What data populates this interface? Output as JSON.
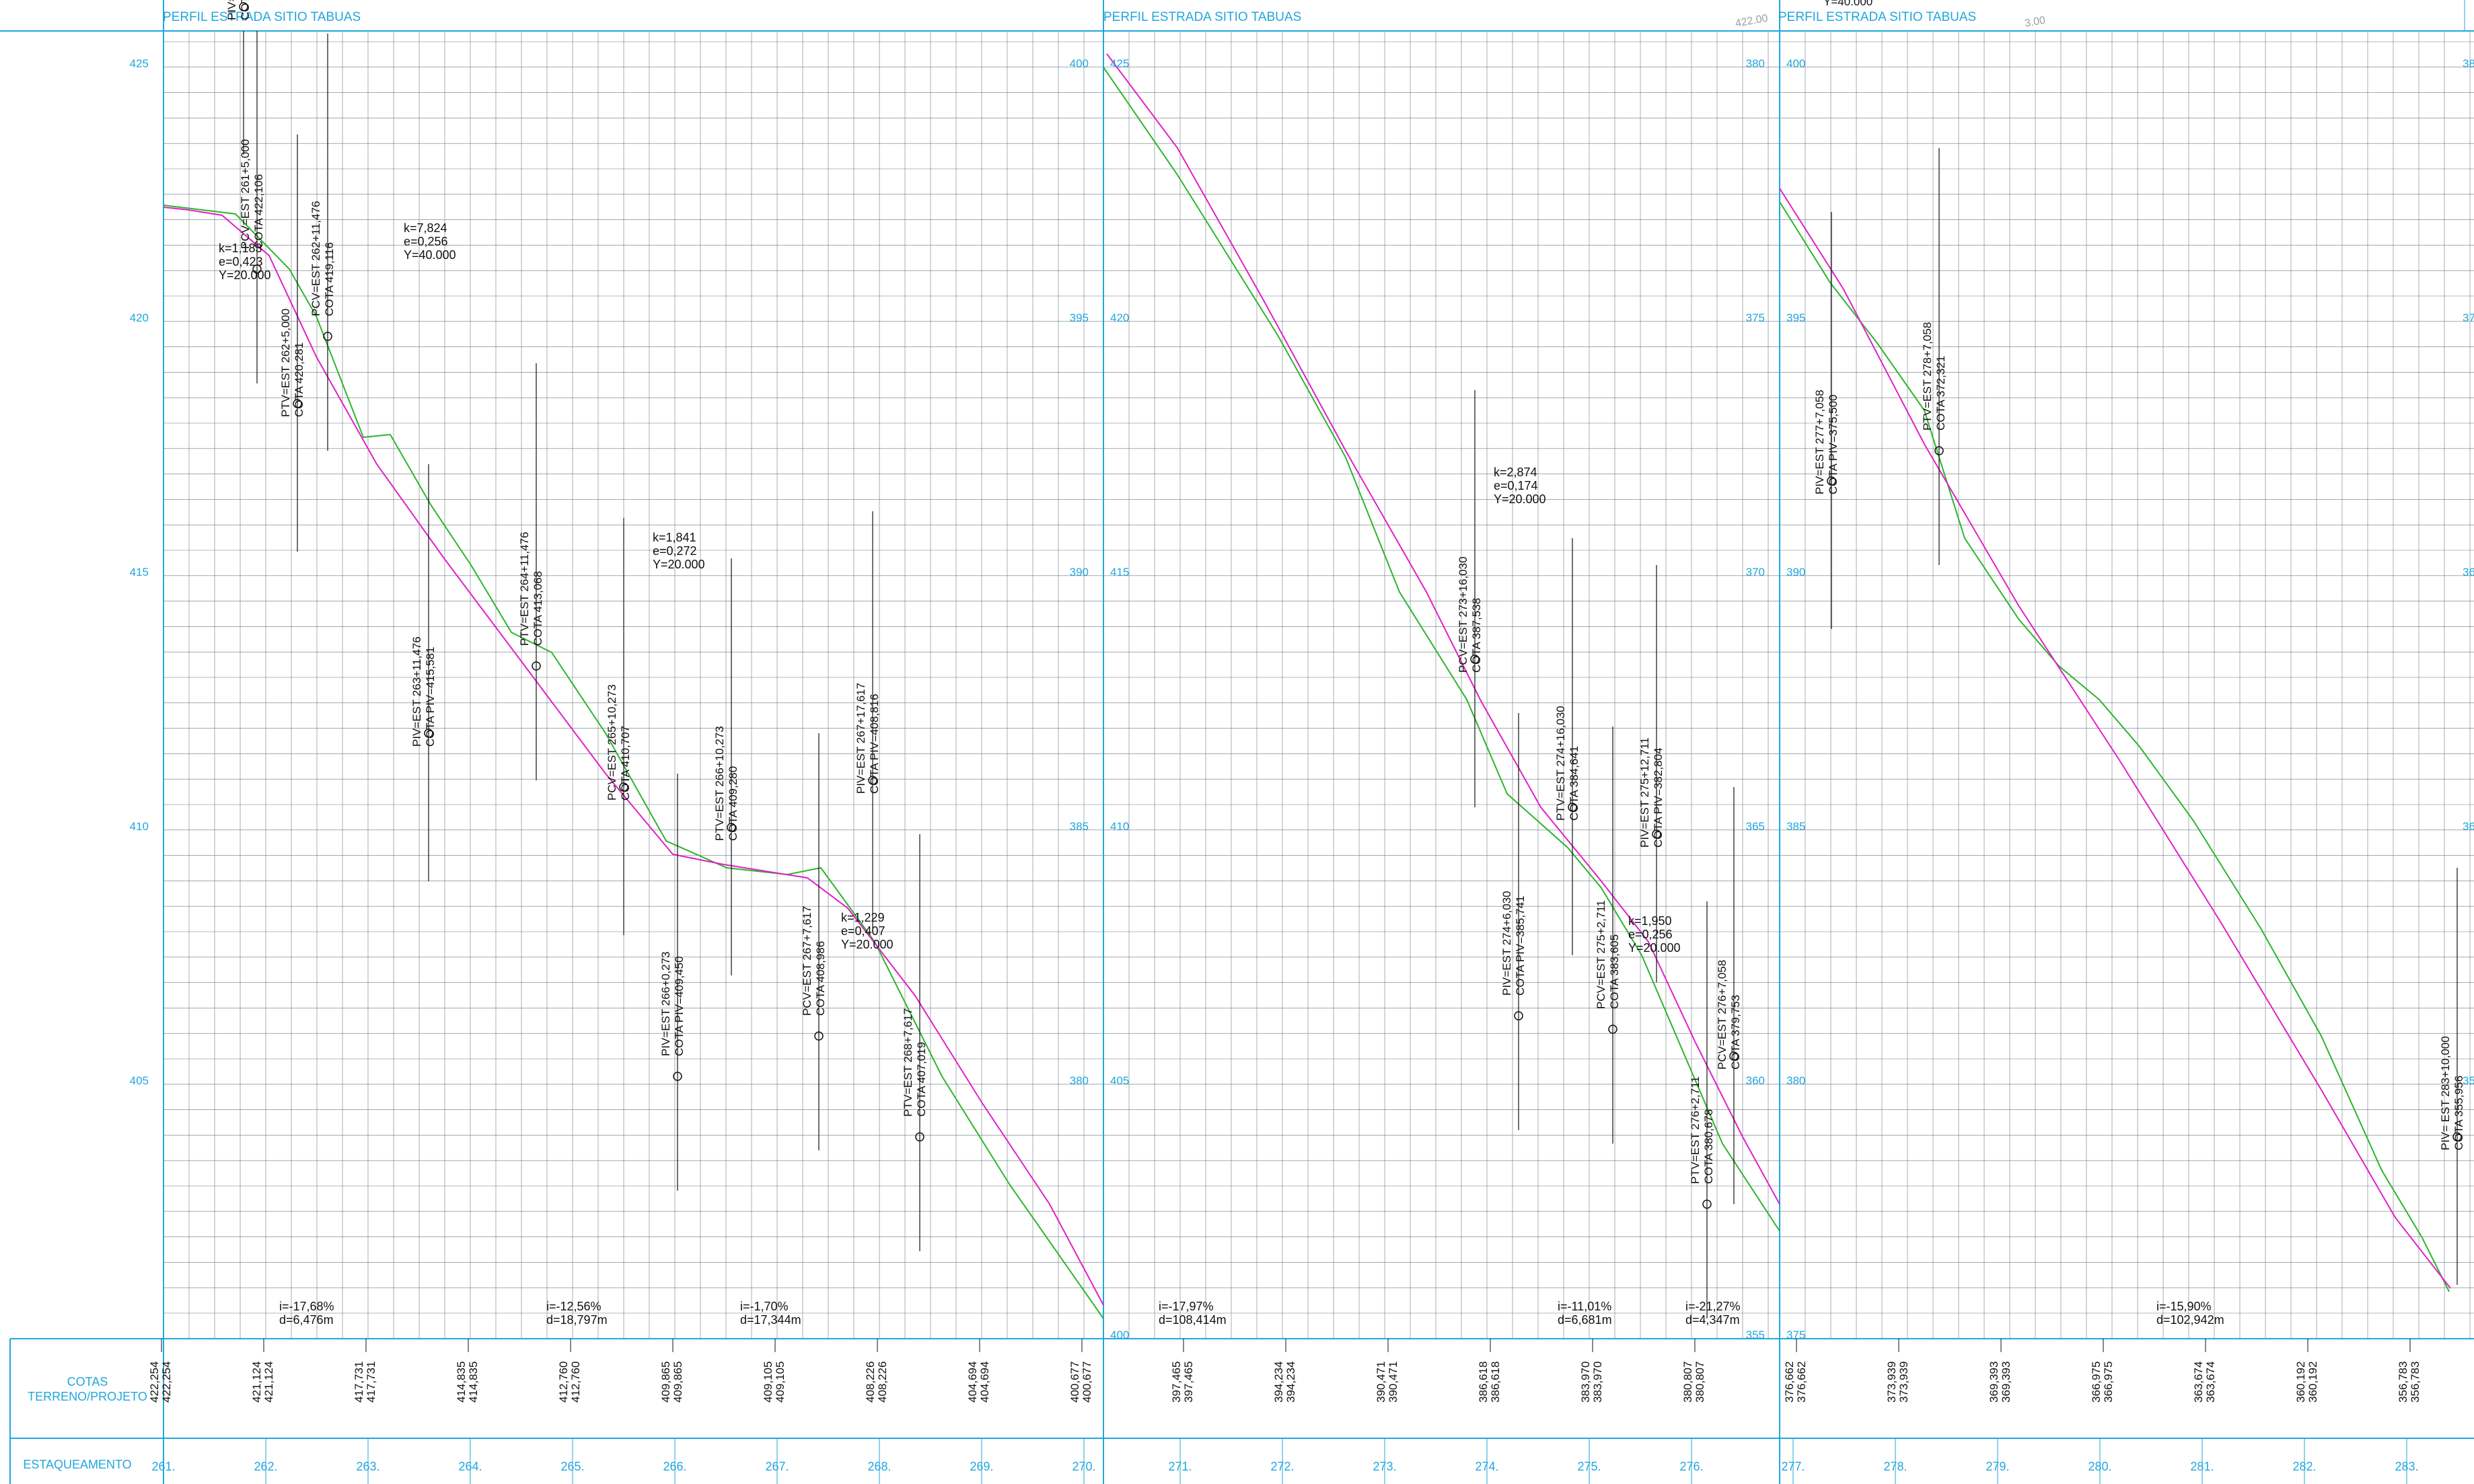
{
  "colors": {
    "frame": "#22a6dd",
    "grid": "#6d7680",
    "terrain": "#2cb52c",
    "design": "#e020c8",
    "annotation": "#111111"
  },
  "panels": [
    {
      "title": "PERFIL ESTRADA SITIO TABUAS",
      "elev_left": [
        "425",
        "420",
        "415",
        "410",
        "405"
      ],
      "elev_left_min": 400,
      "elev_left_max": 425,
      "stations": [
        "261.",
        "262.",
        "263.",
        "264.",
        "265.",
        "266.",
        "267.",
        "268.",
        "269.",
        "270."
      ],
      "cotas": [
        [
          "422,254",
          "422,254"
        ],
        [
          "421,124",
          "421,124"
        ],
        [
          "417,731",
          "417,731"
        ],
        [
          "414,835",
          "414,835"
        ],
        [
          "412,760",
          "412,760"
        ],
        [
          "409,865",
          "409,865"
        ],
        [
          "409,105",
          "409,105"
        ],
        [
          "408,226",
          "408,226"
        ],
        [
          "404,694",
          "404,694"
        ],
        [
          "400,677",
          "400,677"
        ]
      ],
      "vertical_labels": [
        {
          "lines": [
            "PIV=EST 261+15,000",
            "COTA PIV=422,029"
          ]
        },
        {
          "lines": [
            "PCV=EST 261+5,000",
            "COTA 422,106"
          ]
        },
        {
          "lines": [
            "PTV=EST 262+5,000",
            "COTA 420,281"
          ]
        },
        {
          "lines": [
            "PCV=EST 262+11,476",
            "COTA 419,116"
          ]
        },
        {
          "lines": [
            "PIV=EST 263+11,476",
            "COTA PIV=415,581"
          ]
        },
        {
          "lines": [
            "PTV=EST 264+11,476",
            "COTA 413,068"
          ]
        },
        {
          "lines": [
            "PCV=EST 265+10,273",
            "COTA 410,707"
          ]
        },
        {
          "lines": [
            "PIV=EST 266+0,273",
            "COTA PIV=409,450"
          ]
        },
        {
          "lines": [
            "PTV=EST 266+10,273",
            "COTA 409,280"
          ]
        },
        {
          "lines": [
            "PCV=EST 267+7,617",
            "COTA 408,986"
          ]
        },
        {
          "lines": [
            "PIV=EST 267+17,617",
            "COTA PIV=408,816"
          ]
        },
        {
          "lines": [
            "PTV=EST 268+7,617",
            "COTA 407,019"
          ]
        }
      ],
      "curves": [
        {
          "lines": [
            "k=1,183",
            "e=0,423",
            "Y=20.000"
          ]
        },
        {
          "lines": [
            "k=7,824",
            "e=0,256",
            "Y=40.000"
          ]
        },
        {
          "lines": [
            "k=1,841",
            "e=0,272",
            "Y=20.000"
          ]
        },
        {
          "lines": [
            "k=1,229",
            "e=0,407",
            "Y=20.000"
          ]
        }
      ],
      "grades": [
        {
          "lines": [
            "i=-17,68%",
            "d=6,476m"
          ]
        },
        {
          "lines": [
            "i=-12,56%",
            "d=18,797m"
          ]
        },
        {
          "lines": [
            "i=-1,70%",
            "d=17,344m"
          ]
        }
      ]
    },
    {
      "title": "PERFIL ESTRADA SITIO TABUAS",
      "elev_left": [
        "400",
        "395",
        "390",
        "385",
        "380"
      ],
      "elev_left_min": 375,
      "elev_left_max": 400,
      "elev_right": [
        "425",
        "420",
        "415",
        "410",
        "405",
        "400"
      ],
      "stations": [
        "271.",
        "272.",
        "273.",
        "274.",
        "275.",
        "276."
      ],
      "cotas": [
        [
          "397,465",
          "397,465"
        ],
        [
          "394,234",
          "394,234"
        ],
        [
          "390,471",
          "390,471"
        ],
        [
          "386,618",
          "386,618"
        ],
        [
          "383,970",
          "383,970"
        ],
        [
          "380,807",
          "380,807"
        ]
      ],
      "vertical_labels": [
        {
          "lines": [
            "PCV=EST 273+16,030",
            "COTA 387,538"
          ]
        },
        {
          "lines": [
            "PIV=EST 274+6,030",
            "COTA PIV=385,741"
          ]
        },
        {
          "lines": [
            "PTV=EST 274+16,030",
            "COTA 384,641"
          ]
        },
        {
          "lines": [
            "PCV=EST 275+2,711",
            "COTA 383,605"
          ]
        },
        {
          "lines": [
            "PIV=EST 275+12,711",
            "COTA PIV=382,804"
          ]
        },
        {
          "lines": [
            "PTV=EST 276+2,711",
            "COTA 380,678"
          ]
        },
        {
          "lines": [
            "PCV=EST 276+7,058",
            "COTA 379,753"
          ]
        }
      ],
      "curves": [
        {
          "lines": [
            "k=2,874",
            "e=0,174",
            "Y=20.000"
          ]
        },
        {
          "lines": [
            "k=1,950",
            "e=0,256",
            "Y=20.000"
          ]
        }
      ],
      "grades": [
        {
          "lines": [
            "i=-17,97%",
            "d=108,414m"
          ]
        },
        {
          "lines": [
            "i=-11,01%",
            "d=6,681m"
          ]
        },
        {
          "lines": [
            "i=-21,27%",
            "d=4,347m"
          ]
        }
      ]
    },
    {
      "title": "PERFIL ESTRADA SITIO TABUAS",
      "top_note": "Y=40.000",
      "elev_left": [
        "380",
        "375",
        "370",
        "365",
        "360",
        "355"
      ],
      "elev_left_min": 355,
      "elev_left_max": 380,
      "elev_right": [
        "400",
        "395",
        "390",
        "385",
        "380",
        "375"
      ],
      "elev_far": [
        "38",
        "37",
        "36",
        "36",
        "35"
      ],
      "stations": [
        "277.",
        "278.",
        "279.",
        "280.",
        "281.",
        "282.",
        "283.",
        "283."
      ],
      "cotas": [
        [
          "376,662",
          "376,662"
        ],
        [
          "373,939",
          "373,939"
        ],
        [
          "369,393",
          "369,393"
        ],
        [
          "366,975",
          "366,975"
        ],
        [
          "363,674",
          "363,674"
        ],
        [
          "360,192",
          "360,192"
        ],
        [
          "356,783",
          "356,783"
        ],
        [
          "355,956",
          "355,956"
        ]
      ],
      "vertical_labels": [
        {
          "lines": [
            "PIV=EST 277+7,058",
            "COTA PIV=375,500"
          ]
        },
        {
          "lines": [
            "PTV=EST 278+7,058",
            "COTA 372,321"
          ]
        },
        {
          "lines": [
            "PIV= EST 283+10,000",
            "COTA 355,956"
          ]
        }
      ],
      "grades": [
        {
          "lines": [
            "i=-15,90%",
            "d=102,942m"
          ]
        }
      ]
    }
  ],
  "row_labels": {
    "cotas_line1": "COTAS",
    "cotas_line2": "TERRENO/PROJETO",
    "estaqueamento": "ESTAQUEAMENTO"
  },
  "top_fragments": [
    "422.00",
    "3.00"
  ]
}
